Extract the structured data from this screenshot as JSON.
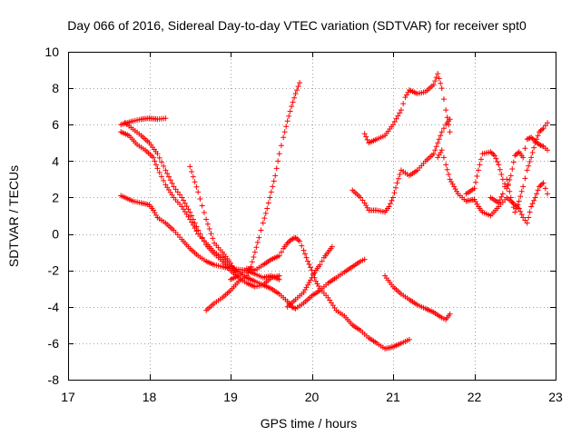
{
  "chart_data": {
    "type": "scatter",
    "title": "Day 066 of 2016, Sidereal Day-to-day VTEC variation (SDTVAR) for receiver spt0",
    "xlabel": "GPS time / hours",
    "ylabel": "SDTVAR / TECUs",
    "xlim": [
      17,
      23
    ],
    "ylim": [
      -8,
      10
    ],
    "xticks": [
      17,
      18,
      19,
      20,
      21,
      22,
      23
    ],
    "yticks": [
      -8,
      -6,
      -4,
      -2,
      0,
      2,
      4,
      6,
      8,
      10
    ],
    "grid": true,
    "marker": "+",
    "color": "#ff0000",
    "step": 0.025,
    "tracks": [
      {
        "name": "arc-1",
        "points": [
          [
            17.65,
            6.0
          ],
          [
            17.8,
            6.2
          ],
          [
            17.9,
            6.3
          ],
          [
            18.0,
            6.35
          ],
          [
            18.1,
            6.3
          ],
          [
            18.2,
            6.35
          ]
        ]
      },
      {
        "name": "arc-2",
        "points": [
          [
            17.65,
            5.6
          ],
          [
            17.75,
            5.4
          ],
          [
            17.85,
            4.9
          ],
          [
            17.95,
            4.6
          ],
          [
            18.05,
            4.2
          ],
          [
            18.1,
            3.6
          ],
          [
            18.2,
            2.7
          ],
          [
            18.3,
            2.0
          ],
          [
            18.4,
            1.5
          ],
          [
            18.5,
            0.8
          ],
          [
            18.6,
            0.0
          ],
          [
            18.7,
            -0.5
          ],
          [
            18.8,
            -1.0
          ],
          [
            18.9,
            -1.3
          ],
          [
            19.0,
            -1.8
          ],
          [
            19.1,
            -2.1
          ],
          [
            19.2,
            -2.4
          ],
          [
            19.3,
            -2.6
          ],
          [
            19.4,
            -2.8
          ],
          [
            19.5,
            -3.0
          ],
          [
            19.6,
            -3.3
          ],
          [
            19.7,
            -3.7
          ],
          [
            19.75,
            -4.0
          ],
          [
            19.8,
            -4.1
          ],
          [
            19.9,
            -3.8
          ],
          [
            20.0,
            -3.4
          ],
          [
            20.1,
            -3.1
          ],
          [
            20.2,
            -2.7
          ],
          [
            20.3,
            -2.4
          ],
          [
            20.4,
            -2.1
          ],
          [
            20.5,
            -1.8
          ],
          [
            20.6,
            -1.5
          ],
          [
            20.65,
            -1.4
          ]
        ]
      },
      {
        "name": "arc-3",
        "points": [
          [
            17.65,
            2.1
          ],
          [
            17.8,
            1.8
          ],
          [
            17.9,
            1.7
          ],
          [
            18.0,
            1.6
          ],
          [
            18.05,
            1.3
          ],
          [
            18.1,
            0.9
          ],
          [
            18.2,
            0.6
          ],
          [
            18.3,
            0.2
          ],
          [
            18.4,
            -0.3
          ],
          [
            18.5,
            -0.8
          ],
          [
            18.6,
            -1.2
          ],
          [
            18.7,
            -1.5
          ],
          [
            18.8,
            -1.7
          ],
          [
            18.9,
            -1.8
          ],
          [
            19.0,
            -1.9
          ],
          [
            19.2,
            -2.0
          ],
          [
            19.3,
            -2.2
          ],
          [
            19.4,
            -2.4
          ],
          [
            19.5,
            -2.3
          ],
          [
            19.6,
            -2.5
          ]
        ]
      },
      {
        "name": "arc-4",
        "points": [
          [
            17.7,
            6.1
          ],
          [
            17.9,
            5.4
          ],
          [
            18.0,
            5.0
          ],
          [
            18.1,
            4.4
          ],
          [
            18.2,
            3.5
          ],
          [
            18.3,
            2.6
          ],
          [
            18.4,
            2.0
          ],
          [
            18.5,
            1.2
          ],
          [
            18.6,
            0.2
          ],
          [
            18.7,
            -0.6
          ],
          [
            18.8,
            -1.1
          ],
          [
            18.9,
            -1.5
          ],
          [
            19.0,
            -2.0
          ],
          [
            19.1,
            -2.4
          ],
          [
            19.2,
            -2.7
          ],
          [
            19.3,
            -2.9
          ],
          [
            19.4,
            -2.8
          ],
          [
            19.5,
            -2.4
          ],
          [
            19.6,
            -2.3
          ]
        ]
      },
      {
        "name": "arc-5",
        "points": [
          [
            18.5,
            3.7
          ],
          [
            18.6,
            2.3
          ],
          [
            18.7,
            0.8
          ],
          [
            18.8,
            -0.5
          ],
          [
            18.9,
            -1.0
          ],
          [
            19.0,
            -1.6
          ],
          [
            19.05,
            -2.0
          ]
        ]
      },
      {
        "name": "arc-6",
        "points": [
          [
            18.7,
            -4.2
          ],
          [
            18.8,
            -3.8
          ],
          [
            18.9,
            -3.5
          ],
          [
            19.0,
            -3.1
          ],
          [
            19.1,
            -2.6
          ],
          [
            19.2,
            -2.3
          ],
          [
            19.25,
            -1.8
          ],
          [
            19.3,
            -1.0
          ],
          [
            19.35,
            -0.2
          ],
          [
            19.4,
            0.6
          ],
          [
            19.45,
            1.4
          ],
          [
            19.5,
            2.3
          ],
          [
            19.55,
            3.2
          ],
          [
            19.6,
            4.4
          ],
          [
            19.65,
            5.3
          ],
          [
            19.7,
            6.2
          ],
          [
            19.75,
            7.0
          ],
          [
            19.8,
            7.7
          ],
          [
            19.85,
            8.3
          ]
        ]
      },
      {
        "name": "arc-7",
        "points": [
          [
            19.0,
            -2.5
          ],
          [
            19.1,
            -2.3
          ],
          [
            19.2,
            -1.9
          ],
          [
            19.3,
            -2.0
          ],
          [
            19.4,
            -1.7
          ],
          [
            19.5,
            -1.4
          ],
          [
            19.6,
            -1.2
          ],
          [
            19.65,
            -0.8
          ],
          [
            19.7,
            -0.5
          ],
          [
            19.75,
            -0.3
          ],
          [
            19.8,
            -0.2
          ],
          [
            19.85,
            -0.4
          ],
          [
            19.9,
            -0.9
          ],
          [
            19.95,
            -1.5
          ],
          [
            20.0,
            -2.0
          ],
          [
            20.05,
            -2.6
          ],
          [
            20.1,
            -3.0
          ],
          [
            20.2,
            -3.5
          ],
          [
            20.3,
            -4.2
          ],
          [
            20.4,
            -4.5
          ],
          [
            20.5,
            -5.0
          ],
          [
            20.6,
            -5.3
          ],
          [
            20.7,
            -5.7
          ],
          [
            20.8,
            -6.0
          ],
          [
            20.9,
            -6.3
          ],
          [
            21.0,
            -6.2
          ],
          [
            21.1,
            -6.0
          ],
          [
            21.2,
            -5.8
          ]
        ]
      },
      {
        "name": "arc-8",
        "points": [
          [
            19.7,
            -4.0
          ],
          [
            19.8,
            -3.6
          ],
          [
            19.9,
            -3.2
          ],
          [
            19.95,
            -2.8
          ],
          [
            20.0,
            -2.4
          ],
          [
            20.05,
            -2.0
          ],
          [
            20.1,
            -1.7
          ],
          [
            20.15,
            -1.3
          ],
          [
            20.2,
            -1.0
          ],
          [
            20.25,
            -0.7
          ]
        ]
      },
      {
        "name": "arc-9",
        "points": [
          [
            20.5,
            2.4
          ],
          [
            20.6,
            2.0
          ],
          [
            20.65,
            1.7
          ],
          [
            20.7,
            1.3
          ],
          [
            20.8,
            1.3
          ],
          [
            20.9,
            1.2
          ],
          [
            20.95,
            1.5
          ],
          [
            21.0,
            2.0
          ],
          [
            21.05,
            2.8
          ],
          [
            21.1,
            3.5
          ],
          [
            21.2,
            3.2
          ],
          [
            21.3,
            3.5
          ],
          [
            21.4,
            4.0
          ],
          [
            21.5,
            4.4
          ],
          [
            21.55,
            5.0
          ],
          [
            21.6,
            5.6
          ],
          [
            21.65,
            6.0
          ],
          [
            21.7,
            6.3
          ]
        ]
      },
      {
        "name": "arc-10",
        "points": [
          [
            20.65,
            5.5
          ],
          [
            20.7,
            5.0
          ],
          [
            20.8,
            5.2
          ],
          [
            20.9,
            5.4
          ],
          [
            21.0,
            6.0
          ],
          [
            21.1,
            6.8
          ],
          [
            21.15,
            7.5
          ],
          [
            21.2,
            7.9
          ],
          [
            21.3,
            7.7
          ],
          [
            21.4,
            7.8
          ],
          [
            21.5,
            8.2
          ],
          [
            21.55,
            8.8
          ],
          [
            21.6,
            8.0
          ],
          [
            21.65,
            6.8
          ],
          [
            21.7,
            5.6
          ]
        ]
      },
      {
        "name": "arc-11",
        "points": [
          [
            21.55,
            4.2
          ],
          [
            21.6,
            4.6
          ],
          [
            21.65,
            3.8
          ],
          [
            21.7,
            3.0
          ],
          [
            21.75,
            2.6
          ],
          [
            21.8,
            2.2
          ],
          [
            21.9,
            1.8
          ],
          [
            22.0,
            1.9
          ],
          [
            22.05,
            1.5
          ],
          [
            22.1,
            1.2
          ],
          [
            22.2,
            1.0
          ],
          [
            22.3,
            1.5
          ],
          [
            22.4,
            2.0
          ],
          [
            22.5,
            1.6
          ],
          [
            22.55,
            1.4
          ],
          [
            22.6,
            0.9
          ],
          [
            22.65,
            0.6
          ],
          [
            22.7,
            1.5
          ],
          [
            22.75,
            2.0
          ],
          [
            22.8,
            2.6
          ],
          [
            22.85,
            2.8
          ],
          [
            22.9,
            2.2
          ]
        ]
      },
      {
        "name": "arc-12",
        "points": [
          [
            21.9,
            2.2
          ],
          [
            22.0,
            2.5
          ],
          [
            22.05,
            3.5
          ],
          [
            22.1,
            4.4
          ],
          [
            22.2,
            4.5
          ],
          [
            22.25,
            4.3
          ],
          [
            22.3,
            3.8
          ],
          [
            22.35,
            3.0
          ],
          [
            22.4,
            2.5
          ],
          [
            22.45,
            3.2
          ],
          [
            22.5,
            4.3
          ],
          [
            22.55,
            4.5
          ],
          [
            22.6,
            4.2
          ],
          [
            22.65,
            5.2
          ],
          [
            22.7,
            5.3
          ],
          [
            22.75,
            5.1
          ],
          [
            22.8,
            4.9
          ],
          [
            22.85,
            4.8
          ],
          [
            22.9,
            4.6
          ]
        ]
      },
      {
        "name": "arc-13",
        "points": [
          [
            22.2,
            2.0
          ],
          [
            22.3,
            1.7
          ],
          [
            22.35,
            2.2
          ],
          [
            22.4,
            3.0
          ],
          [
            22.45,
            2.0
          ],
          [
            22.5,
            1.2
          ],
          [
            22.55,
            1.8
          ],
          [
            22.6,
            2.6
          ],
          [
            22.65,
            3.5
          ],
          [
            22.7,
            4.2
          ],
          [
            22.75,
            5.0
          ],
          [
            22.8,
            5.6
          ],
          [
            22.85,
            5.8
          ],
          [
            22.9,
            6.1
          ]
        ]
      },
      {
        "name": "arc-14",
        "points": [
          [
            20.9,
            -2.3
          ],
          [
            21.0,
            -2.9
          ],
          [
            21.1,
            -3.3
          ],
          [
            21.2,
            -3.6
          ],
          [
            21.3,
            -3.9
          ],
          [
            21.4,
            -4.1
          ],
          [
            21.5,
            -4.3
          ],
          [
            21.6,
            -4.6
          ],
          [
            21.65,
            -4.7
          ],
          [
            21.7,
            -4.4
          ]
        ]
      }
    ]
  }
}
